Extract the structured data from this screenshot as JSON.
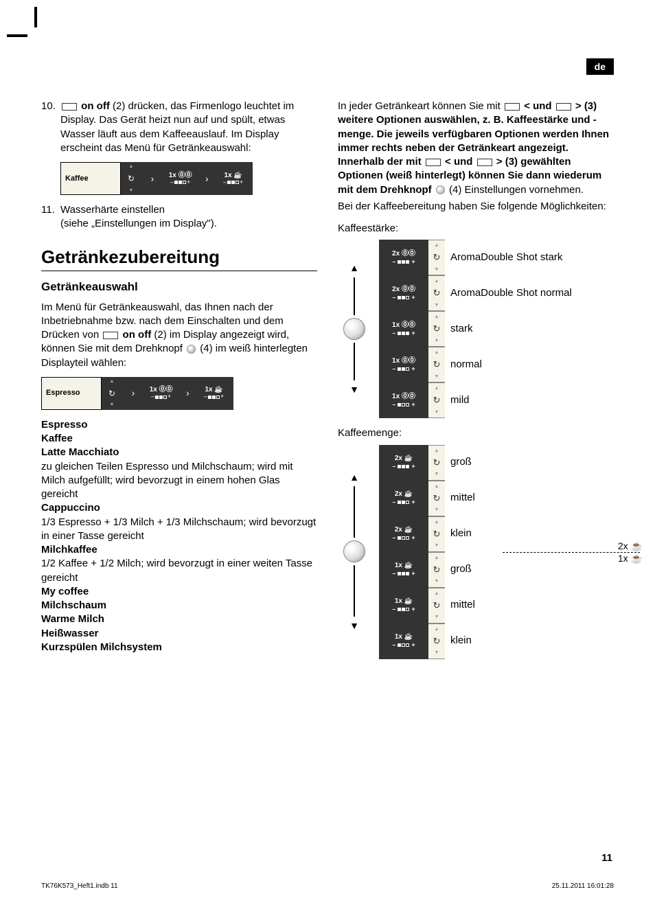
{
  "lang_badge": "de",
  "col1": {
    "item10_num": "10.",
    "item10_text_a": " ",
    "item10_bold": "on off",
    "item10_text_b": " (2) drücken, das Firmenlogo leuchtet im Display. Das Gerät heizt nun auf und spült, etwas Wasser läuft aus dem Kaffeeauslauf. Im Display erscheint das Menü für Getränkeauswahl:",
    "display1_label": "Kaffee",
    "item11_num": "11.",
    "item11_text": "Wasserhärte einstellen\n(siehe „Einstellungen im Display\").",
    "h1": "Getränkezubereitung",
    "h2": "Getränkeauswahl",
    "para1_a": "Im Menü für Getränkeauswahl, das Ihnen nach der Inbetriebnahme bzw. nach dem Einschalten und dem Drücken von ",
    "para1_bold": "on off",
    "para1_b": " (2) im Display angezeigt wird, können Sie mit dem Drehknopf ",
    "para1_c": " (4) im weiß hinterlegten Displayteil wählen:",
    "display2_label": "Espresso",
    "drinks": {
      "d1": "Espresso",
      "d2": "Kaffee",
      "d3": "Latte Macchiato",
      "d3_desc": "zu gleichen Teilen Espresso und Milchschaum; wird mit Milch aufgefüllt; wird bevorzugt in einem hohen Glas gereicht",
      "d4": "Cappuccino",
      "d4_desc": "1/3 Espresso + 1/3 Milch + 1/3 Milchschaum; wird bevorzugt in einer Tasse gereicht",
      "d5": "Milchkaffee",
      "d5_desc": "1/2 Kaffee + 1/2 Milch; wird bevorzugt in einer weiten Tasse gereicht",
      "d6": "My coffee",
      "d7": "Milchschaum",
      "d8": "Warme Milch",
      "d9": "Heißwasser",
      "d10": "Kurzspülen Milchsystem"
    }
  },
  "col2": {
    "para1_a": "In jeder Getränkeart können Sie mit ",
    "para1_b": " < und ",
    "para1_c": " > (3) weitere Optionen auswählen, z. B. Kaffeestärke und -menge. Die jeweils verfügbaren Optionen werden Ihnen immer rechts neben der Getränkeart angezeigt. Innerhalb der mit ",
    "para1_d": " < und ",
    "para1_e": " > (3) gewählten Optionen (weiß hinterlegt) können Sie dann wiederum mit dem Drehknopf ",
    "para1_f": " (4) Einstellungen vornehmen.",
    "para2": "Bei der Kaffeebereitung haben Sie folgende Möglichkeiten:",
    "strength_label": "Kaffeestärke:",
    "strength_rows": [
      {
        "top": "2x ⓪⓪",
        "bars": [
          1,
          1,
          1
        ],
        "label": "AromaDouble Shot stark"
      },
      {
        "top": "2x ⓪⓪",
        "bars": [
          1,
          1,
          0
        ],
        "label": "AromaDouble Shot normal"
      },
      {
        "top": "1x ⓪⓪",
        "bars": [
          1,
          1,
          1
        ],
        "label": "stark"
      },
      {
        "top": "1x ⓪⓪",
        "bars": [
          1,
          1,
          0
        ],
        "label": "normal"
      },
      {
        "top": "1x ⓪⓪",
        "bars": [
          1,
          0,
          0
        ],
        "label": "mild"
      }
    ],
    "amount_label": "Kaffeemenge:",
    "amount_rows": [
      {
        "top": "2x ☕",
        "bars": [
          1,
          1,
          1
        ],
        "label": "groß"
      },
      {
        "top": "2x ☕",
        "bars": [
          1,
          1,
          0
        ],
        "label": "mittel"
      },
      {
        "top": "2x ☕",
        "bars": [
          1,
          0,
          0
        ],
        "label": "klein"
      },
      {
        "top": "1x ☕",
        "bars": [
          1,
          1,
          1
        ],
        "label": "groß"
      },
      {
        "top": "1x ☕",
        "bars": [
          1,
          1,
          0
        ],
        "label": "mittel"
      },
      {
        "top": "1x ☕",
        "bars": [
          1,
          0,
          0
        ],
        "label": "klein"
      }
    ],
    "side_2x": "2x ☕",
    "side_1x": "1x ☕"
  },
  "display_opt1_top": "1x ⓪⓪",
  "display_opt2_top": "1x ☕",
  "page_num": "11",
  "footer_left": "TK76K573_Heft1.indb   11",
  "footer_right": "25.11.2011   16:01:28"
}
